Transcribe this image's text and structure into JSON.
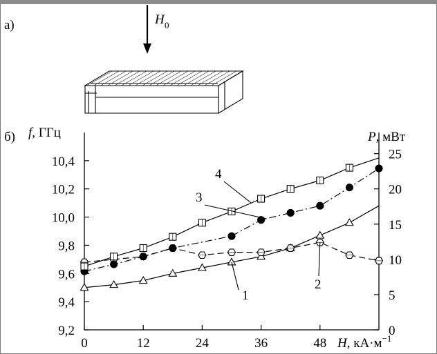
{
  "panel_a": {
    "label": "а)",
    "field_symbol": "H",
    "field_subscript": "0"
  },
  "panel_b": {
    "label": "б)",
    "left_axis_symbol": "f",
    "left_axis_unit": ", ГГц",
    "right_axis_symbol": "P",
    "right_axis_unit": ", мВт",
    "x_axis_symbol": "H",
    "x_axis_unit": ", кА·м",
    "x_axis_unit_exp": "−1"
  },
  "chart_data": {
    "type": "line",
    "x_ticks": [
      0,
      12,
      24,
      36,
      48
    ],
    "x_range": [
      0,
      60
    ],
    "y_left_ticks": [
      "9,2",
      "9,4",
      "9,6",
      "9,8",
      "10,0",
      "10,2",
      "10,4"
    ],
    "y_left_range": [
      9.2,
      10.6
    ],
    "y_right_ticks": [
      "0",
      "5",
      "10",
      "15",
      "20",
      "25"
    ],
    "y_right_range": [
      0,
      28
    ],
    "series": [
      {
        "name": "1",
        "axis": "left",
        "marker": "triangle",
        "line": "solid",
        "x": [
          0,
          6,
          12,
          18,
          24,
          30,
          36,
          42,
          48,
          54
        ],
        "y": [
          9.5,
          9.52,
          9.55,
          9.6,
          9.64,
          9.68,
          9.72,
          9.78,
          9.87,
          9.96
        ],
        "line_end": [
          60,
          10.08
        ]
      },
      {
        "name": "2",
        "axis": "left",
        "marker": "hexagon",
        "line": "dashed",
        "x": [
          0,
          6,
          12,
          18,
          24,
          30,
          36,
          42,
          48,
          54,
          60
        ],
        "y": [
          9.68,
          9.7,
          9.72,
          9.78,
          9.73,
          9.75,
          9.75,
          9.78,
          9.82,
          9.73,
          9.69
        ]
      },
      {
        "name": "3",
        "axis": "right",
        "marker": "filled-circle",
        "line": "dash-dot",
        "x": [
          0,
          6,
          12,
          18,
          30,
          36,
          42,
          48,
          54,
          60
        ],
        "y": [
          8.3,
          9.3,
          10.4,
          11.6,
          13.3,
          15.6,
          16.6,
          17.6,
          20.2,
          22.9
        ]
      },
      {
        "name": "4",
        "axis": "left",
        "marker": "square",
        "line": "solid",
        "x": [
          0,
          6,
          12,
          18,
          24,
          30,
          36,
          42,
          48,
          54
        ],
        "y": [
          9.65,
          9.72,
          9.78,
          9.86,
          9.96,
          10.04,
          10.13,
          10.2,
          10.26,
          10.35
        ],
        "line_end": [
          60,
          10.42
        ]
      }
    ]
  }
}
